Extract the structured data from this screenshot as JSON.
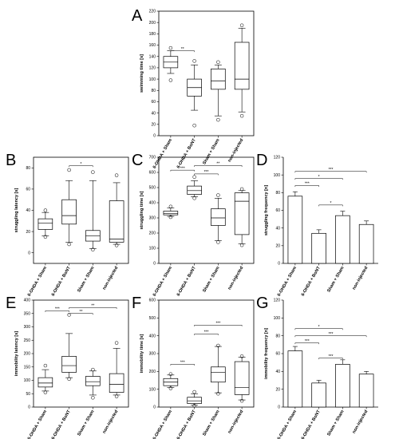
{
  "figure": {
    "panels": [
      "A",
      "B",
      "C",
      "D",
      "E",
      "F",
      "G"
    ]
  },
  "chart_data": [
    {
      "id": "A",
      "type": "box",
      "letter": "A",
      "ylabel": "swimming time [s]",
      "ylim": [
        0,
        220
      ],
      "yticks": [
        "0",
        "20",
        "40",
        "60",
        "80",
        "100",
        "120",
        "140",
        "160",
        "180",
        "200",
        "220"
      ],
      "categories": [
        "6-OHDA + Sham",
        "6-OHDA + BoNT",
        "Sham + Sham",
        "non-injected"
      ],
      "boxes": [
        {
          "whisker_low": 110,
          "q1": 120,
          "median": 130,
          "q3": 140,
          "whisker_high": 150,
          "outliers": [
            98,
            155
          ]
        },
        {
          "whisker_low": 45,
          "q1": 70,
          "median": 85,
          "q3": 100,
          "whisker_high": 125,
          "outliers": [
            18,
            132
          ]
        },
        {
          "whisker_low": 35,
          "q1": 82,
          "median": 97,
          "q3": 118,
          "whisker_high": 125,
          "outliers": [
            28,
            130
          ]
        },
        {
          "whisker_low": 42,
          "q1": 82,
          "median": 100,
          "q3": 165,
          "whisker_high": 190,
          "outliers": [
            35,
            195
          ]
        }
      ],
      "significance": [
        {
          "from": 0,
          "to": 1,
          "y": 150,
          "label": "**"
        }
      ]
    },
    {
      "id": "B",
      "type": "box",
      "letter": "B",
      "ylabel": "struggling latency [s]",
      "ylim": [
        -10,
        90
      ],
      "yticks": [
        "0",
        "20",
        "40",
        "60",
        "80"
      ],
      "categories": [
        "6-OHDA + Sham",
        "6-OHDA + BoNT",
        "Sham + Sham",
        "non-injected"
      ],
      "boxes": [
        {
          "whisker_low": 16,
          "q1": 22,
          "median": 28,
          "q3": 32,
          "whisker_high": 38,
          "outliers": [
            15,
            40
          ]
        },
        {
          "whisker_low": 10,
          "q1": 27,
          "median": 35,
          "q3": 50,
          "whisker_high": 68,
          "outliers": [
            8,
            78
          ]
        },
        {
          "whisker_low": 4,
          "q1": 11,
          "median": 16,
          "q3": 21,
          "whisker_high": 68,
          "outliers": [
            3,
            76
          ]
        },
        {
          "whisker_low": 8,
          "q1": 10,
          "median": 13,
          "q3": 49,
          "whisker_high": 66,
          "outliers": [
            7,
            73
          ]
        }
      ],
      "significance": [
        {
          "from": 1,
          "to": 2,
          "y": 82,
          "label": "*"
        }
      ]
    },
    {
      "id": "C",
      "type": "box",
      "letter": "C",
      "ylabel": "struggling time [s]",
      "ylim": [
        0,
        700
      ],
      "yticks": [
        "0",
        "100",
        "200",
        "300",
        "400",
        "500",
        "600",
        "700"
      ],
      "categories": [
        "6-OHDA + Sham",
        "6-OHDA + BoNT",
        "Sham + Sham",
        "non-injected"
      ],
      "boxes": [
        {
          "whisker_low": 310,
          "q1": 320,
          "median": 330,
          "q3": 345,
          "whisker_high": 365,
          "outliers": [
            305,
            375
          ]
        },
        {
          "whisker_low": 440,
          "q1": 455,
          "median": 480,
          "q3": 510,
          "whisker_high": 545,
          "outliers": [
            430,
            570
          ]
        },
        {
          "whisker_low": 150,
          "q1": 250,
          "median": 300,
          "q3": 360,
          "whisker_high": 430,
          "outliers": [
            140,
            450
          ]
        },
        {
          "whisker_low": 130,
          "q1": 190,
          "median": 410,
          "q3": 465,
          "whisker_high": 480,
          "outliers": [
            120,
            490
          ]
        }
      ],
      "significance": [
        {
          "from": 0,
          "to": 1,
          "y": 615,
          "label": "***"
        },
        {
          "from": 1,
          "to": 2,
          "y": 590,
          "label": "***"
        },
        {
          "from": 1,
          "to": 3,
          "y": 645,
          "label": "**"
        }
      ]
    },
    {
      "id": "D",
      "type": "bar",
      "letter": "D",
      "ylabel": "struggling frequency [n]",
      "ylim": [
        0,
        120
      ],
      "yticks": [
        "0",
        "20",
        "40",
        "60",
        "80",
        "100",
        "120"
      ],
      "categories": [
        "6-OHDA + Sham",
        "6-OHDA + BoNT",
        "Sham + Sham",
        "non-injected"
      ],
      "values": [
        76,
        34,
        54,
        44
      ],
      "errors": [
        5,
        4,
        5,
        4
      ],
      "significance": [
        {
          "from": 0,
          "to": 1,
          "y": 88,
          "label": "***"
        },
        {
          "from": 0,
          "to": 2,
          "y": 96,
          "label": "*"
        },
        {
          "from": 0,
          "to": 3,
          "y": 104,
          "label": "***"
        },
        {
          "from": 1,
          "to": 2,
          "y": 66,
          "label": "*"
        }
      ]
    },
    {
      "id": "E",
      "type": "box",
      "letter": "E",
      "ylabel": "immobility latency [s]",
      "ylim": [
        0,
        400
      ],
      "yticks": [
        "0",
        "50",
        "100",
        "150",
        "200",
        "250",
        "300",
        "350",
        "400"
      ],
      "categories": [
        "6-OHDA + Sham",
        "6-OHDA + BoNT",
        "Sham + Sham",
        "non-injected"
      ],
      "boxes": [
        {
          "whisker_low": 60,
          "q1": 75,
          "median": 90,
          "q3": 110,
          "whisker_high": 140,
          "outliers": [
            55,
            155
          ]
        },
        {
          "whisker_low": 110,
          "q1": 130,
          "median": 155,
          "q3": 190,
          "whisker_high": 275,
          "outliers": [
            105,
            345
          ]
        },
        {
          "whisker_low": 45,
          "q1": 80,
          "median": 95,
          "q3": 115,
          "whisker_high": 135,
          "outliers": [
            35,
            140
          ]
        },
        {
          "whisker_low": 45,
          "q1": 55,
          "median": 85,
          "q3": 125,
          "whisker_high": 220,
          "outliers": [
            40,
            240
          ]
        }
      ],
      "significance": [
        {
          "from": 0,
          "to": 1,
          "y": 360,
          "label": "***"
        },
        {
          "from": 1,
          "to": 2,
          "y": 350,
          "label": "**"
        },
        {
          "from": 1,
          "to": 3,
          "y": 372,
          "label": "**"
        }
      ]
    },
    {
      "id": "F",
      "type": "box",
      "letter": "F",
      "ylabel": "immobility time [s]",
      "ylim": [
        0,
        600
      ],
      "yticks": [
        "0",
        "100",
        "200",
        "300",
        "400",
        "500",
        "600"
      ],
      "categories": [
        "6-OHDA + Sham",
        "6-OHDA + BoNT",
        "Sham + Sham",
        "non-injected"
      ],
      "boxes": [
        {
          "whisker_low": 110,
          "q1": 120,
          "median": 140,
          "q3": 160,
          "whisker_high": 180,
          "outliers": [
            105,
            185
          ]
        },
        {
          "whisker_low": 10,
          "q1": 20,
          "median": 35,
          "q3": 55,
          "whisker_high": 75,
          "outliers": [
            8,
            85
          ]
        },
        {
          "whisker_low": 80,
          "q1": 140,
          "median": 195,
          "q3": 225,
          "whisker_high": 340,
          "outliers": [
            75,
            345
          ]
        },
        {
          "whisker_low": 40,
          "q1": 70,
          "median": 110,
          "q3": 255,
          "whisker_high": 280,
          "outliers": [
            35,
            285
          ]
        }
      ],
      "significance": [
        {
          "from": 0,
          "to": 1,
          "y": 240,
          "label": "***"
        },
        {
          "from": 1,
          "to": 2,
          "y": 410,
          "label": "***"
        },
        {
          "from": 1,
          "to": 3,
          "y": 460,
          "label": "***"
        }
      ]
    },
    {
      "id": "G",
      "type": "bar",
      "letter": "G",
      "ylabel": "immobility frequency [n]",
      "ylim": [
        0,
        120
      ],
      "yticks": [
        "0",
        "20",
        "40",
        "60",
        "80",
        "100",
        "120"
      ],
      "categories": [
        "6-OHDA + Sham",
        "6-OHDA + BoNT",
        "Sham + Sham",
        "non-injected"
      ],
      "values": [
        63,
        27,
        48,
        37
      ],
      "errors": [
        5,
        3,
        5,
        3
      ],
      "significance": [
        {
          "from": 0,
          "to": 1,
          "y": 72,
          "label": "***"
        },
        {
          "from": 0,
          "to": 2,
          "y": 88,
          "label": "*"
        },
        {
          "from": 0,
          "to": 3,
          "y": 80,
          "label": "***"
        },
        {
          "from": 1,
          "to": 2,
          "y": 55,
          "label": "***"
        }
      ]
    }
  ]
}
